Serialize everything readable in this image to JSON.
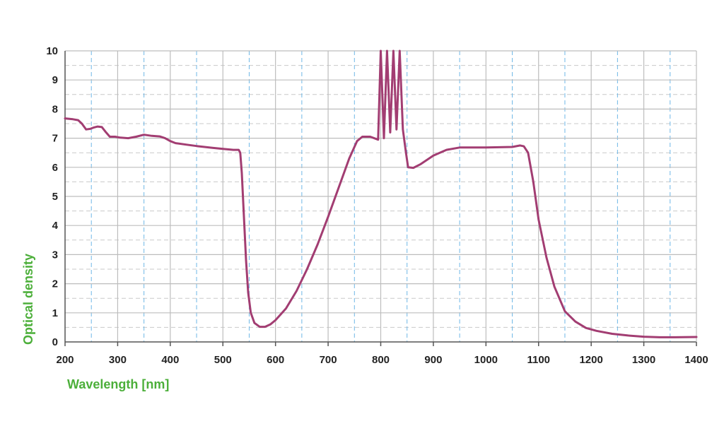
{
  "chart_data": {
    "type": "line",
    "xlabel": "Wavelength [nm]",
    "ylabel": "Optical density",
    "xlim": [
      200,
      1400
    ],
    "ylim": [
      0,
      10
    ],
    "x_ticks": [
      "200",
      "300",
      "400",
      "500",
      "600",
      "700",
      "800",
      "900",
      "1000",
      "1100",
      "1200",
      "1300",
      "1400"
    ],
    "y_ticks": [
      "0",
      "1",
      "2",
      "3",
      "4",
      "5",
      "6",
      "7",
      "8",
      "9",
      "10"
    ],
    "grid": true,
    "colors": {
      "series": "#A23D72",
      "axis_title": "#4CAF3A",
      "grid_major": "#BDBDBD",
      "grid_minor_x": "#6FB7E6",
      "grid_minor_y": "#C9C9C9"
    },
    "series": [
      {
        "points": [
          [
            200,
            7.68
          ],
          [
            215,
            7.65
          ],
          [
            225,
            7.62
          ],
          [
            232,
            7.5
          ],
          [
            240,
            7.3
          ],
          [
            248,
            7.32
          ],
          [
            255,
            7.37
          ],
          [
            262,
            7.4
          ],
          [
            270,
            7.38
          ],
          [
            278,
            7.2
          ],
          [
            285,
            7.05
          ],
          [
            295,
            7.05
          ],
          [
            305,
            7.02
          ],
          [
            320,
            7.0
          ],
          [
            335,
            7.05
          ],
          [
            350,
            7.12
          ],
          [
            365,
            7.08
          ],
          [
            380,
            7.06
          ],
          [
            390,
            7.0
          ],
          [
            400,
            6.9
          ],
          [
            410,
            6.83
          ],
          [
            430,
            6.78
          ],
          [
            450,
            6.73
          ],
          [
            480,
            6.67
          ],
          [
            500,
            6.63
          ],
          [
            520,
            6.6
          ],
          [
            530,
            6.6
          ],
          [
            533,
            6.5
          ],
          [
            536,
            5.8
          ],
          [
            540,
            4.3
          ],
          [
            544,
            2.8
          ],
          [
            548,
            1.7
          ],
          [
            553,
            1.0
          ],
          [
            560,
            0.65
          ],
          [
            570,
            0.52
          ],
          [
            580,
            0.52
          ],
          [
            590,
            0.6
          ],
          [
            600,
            0.75
          ],
          [
            620,
            1.15
          ],
          [
            640,
            1.75
          ],
          [
            660,
            2.5
          ],
          [
            680,
            3.35
          ],
          [
            700,
            4.3
          ],
          [
            720,
            5.3
          ],
          [
            740,
            6.3
          ],
          [
            755,
            6.9
          ],
          [
            765,
            7.05
          ],
          [
            780,
            7.05
          ],
          [
            795,
            6.95
          ],
          [
            800,
            10.0
          ],
          [
            806,
            7.0
          ],
          [
            812,
            10.0
          ],
          [
            818,
            7.2
          ],
          [
            824,
            10.0
          ],
          [
            830,
            7.3
          ],
          [
            836,
            10.0
          ],
          [
            842,
            7.3
          ],
          [
            848,
            6.5
          ],
          [
            852,
            6.0
          ],
          [
            862,
            5.98
          ],
          [
            875,
            6.1
          ],
          [
            900,
            6.4
          ],
          [
            925,
            6.6
          ],
          [
            950,
            6.68
          ],
          [
            1000,
            6.68
          ],
          [
            1050,
            6.7
          ],
          [
            1065,
            6.75
          ],
          [
            1072,
            6.72
          ],
          [
            1080,
            6.5
          ],
          [
            1090,
            5.5
          ],
          [
            1100,
            4.2
          ],
          [
            1115,
            2.9
          ],
          [
            1130,
            1.9
          ],
          [
            1150,
            1.05
          ],
          [
            1170,
            0.7
          ],
          [
            1190,
            0.48
          ],
          [
            1210,
            0.38
          ],
          [
            1240,
            0.28
          ],
          [
            1270,
            0.22
          ],
          [
            1300,
            0.18
          ],
          [
            1330,
            0.16
          ],
          [
            1360,
            0.16
          ],
          [
            1400,
            0.17
          ]
        ]
      }
    ]
  }
}
